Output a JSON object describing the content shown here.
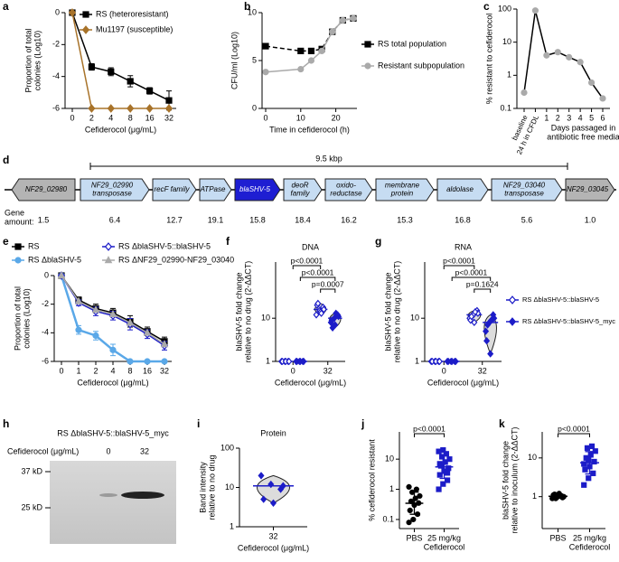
{
  "chart_data": [
    {
      "panel": "a",
      "type": "line",
      "categories": [
        "0",
        "2",
        "4",
        "8",
        "16",
        "32"
      ],
      "ylim": [
        -6,
        0
      ],
      "yticks": [
        -6,
        -4,
        -2,
        0
      ],
      "xlabel": "Cefiderocol (μg/mL)",
      "ylabel": [
        "Proportion of total",
        "colonies (Log10)"
      ],
      "legend": "upper right",
      "series": [
        {
          "name": "RS (heteroresistant)",
          "color": "#000000",
          "marker": "square",
          "values": [
            0,
            -3.4,
            -3.7,
            -4.3,
            -4.9,
            -5.5
          ],
          "errors": [
            0,
            0.2,
            0.25,
            0.35,
            0.2,
            0.6
          ]
        },
        {
          "name": "Mu1197 (susceptible)",
          "color": "#a8732a",
          "marker": "diamond",
          "values": [
            0,
            -6,
            -6,
            -6,
            -6,
            -6
          ]
        }
      ]
    },
    {
      "panel": "b",
      "type": "line",
      "x": [
        0,
        10,
        13,
        16,
        19,
        22,
        25
      ],
      "xlim": [
        0,
        25
      ],
      "xticks": [
        0,
        10,
        20
      ],
      "ylim": [
        0,
        10
      ],
      "yticks": [
        0,
        5,
        10
      ],
      "xlabel": "Time in cefiderocol (h)",
      "ylabel": [
        "CFU/ml (Log10)"
      ],
      "legend": "right",
      "series": [
        {
          "name": "RS total population",
          "color": "#000000",
          "marker": "square",
          "dash": true,
          "values": [
            6.5,
            6.0,
            6.0,
            6.2,
            8.0,
            9.2,
            9.4
          ]
        },
        {
          "name": "Resistant subpopulation",
          "color": "#aaaaaa",
          "marker": "circle",
          "values": [
            3.8,
            4.1,
            5.0,
            6.0,
            8.0,
            9.2,
            9.4
          ]
        }
      ]
    },
    {
      "panel": "c",
      "type": "line",
      "categories": [
        "baseline",
        "24 h in CFDL",
        "1",
        "2",
        "3",
        "4",
        "5",
        "6"
      ],
      "log_y": true,
      "ylim": [
        0.1,
        100
      ],
      "yticks": [
        0.1,
        1,
        10,
        100
      ],
      "xlabel": [
        "Days passaged in",
        "antibiotic free media"
      ],
      "ylabel": [
        "% resistant to cefiderocol"
      ],
      "series": [
        {
          "color": "#000000",
          "point_color": "#aaaaaa",
          "marker": "circle",
          "values": [
            0.3,
            90,
            4,
            5,
            3.5,
            2.5,
            0.6,
            0.2
          ]
        }
      ]
    },
    {
      "panel": "e",
      "type": "line",
      "categories": [
        "0",
        "1",
        "2",
        "4",
        "8",
        "16",
        "32"
      ],
      "ylim": [
        -6,
        0
      ],
      "yticks": [
        -6,
        -4,
        -2,
        0
      ],
      "xlabel": "Cefiderocol (μg/mL)",
      "ylabel": [
        "Proportion of total",
        "colonies (Log10)"
      ],
      "legend": "top",
      "series": [
        {
          "name": "RS",
          "color": "#000000",
          "marker": "square",
          "values": [
            0,
            -1.7,
            -2.3,
            -2.6,
            -3.2,
            -3.9,
            -4.6
          ],
          "errors": [
            0,
            0.2,
            0.3,
            0.3,
            0.4,
            0.3,
            0.3
          ]
        },
        {
          "name": "RS ΔblaSHV-5",
          "color": "#5aa8e8",
          "marker": "circle",
          "width": 2.5,
          "values": [
            0,
            -3.8,
            -4.2,
            -5.2,
            -6,
            -6,
            -6
          ],
          "errors": [
            0,
            0.3,
            0.3,
            0.4,
            0,
            0,
            0
          ]
        },
        {
          "name": "RS ΔblaSHV-5::blaSHV-5",
          "color": "#1c1cc8",
          "marker": "diamond",
          "open": true,
          "values": [
            0,
            -1.9,
            -2.5,
            -2.8,
            -3.4,
            -4.1,
            -4.9
          ],
          "errors": [
            0,
            0.2,
            0.3,
            0.3,
            0.4,
            0.3,
            0.3
          ]
        },
        {
          "name": "RS ΔNF29_02990-NF29_03040",
          "color": "#aaaaaa",
          "marker": "triangle",
          "values": [
            0,
            -1.8,
            -2.4,
            -2.7,
            -3.3,
            -4.0,
            -4.8
          ]
        }
      ]
    },
    {
      "panel": "f",
      "type": "strip",
      "title": "DNA",
      "categories": [
        "0",
        "32"
      ],
      "log_y": true,
      "violin": true,
      "ylim": [
        1,
        200
      ],
      "yticks": [
        1,
        10
      ],
      "xlabel": "Cefiderocol (μg/mL)",
      "ylabel": [
        "blaSHV-5 fold change",
        "relative to no drug (2-ΔΔCT)"
      ],
      "annotations": [
        "p<0.0001",
        "p<0.0001",
        "p=0.0007"
      ],
      "series": [
        {
          "color": "#1c1cc8",
          "marker": "diamond",
          "open": true,
          "points": [
            [
              1,
              1,
              1,
              1,
              1,
              1
            ],
            [
              12,
              15,
              18,
              20,
              14,
              16,
              22,
              13
            ]
          ]
        },
        {
          "color": "#1c1cc8",
          "marker": "diamond",
          "points": [
            [
              1,
              1,
              1,
              1,
              1,
              1
            ],
            [
              8,
              10,
              12,
              9,
              7,
              11,
              6,
              13
            ]
          ]
        }
      ]
    },
    {
      "panel": "g",
      "type": "strip",
      "title": "RNA",
      "categories": [
        "0",
        "32"
      ],
      "log_y": true,
      "violin": true,
      "ylim": [
        1,
        200
      ],
      "yticks": [
        1,
        10
      ],
      "xlabel": "Cefiderocol (μg/mL)",
      "ylabel": [
        "blaSHV-5 fold change",
        "relative to no drug (2-ΔΔCT)"
      ],
      "legend": "right",
      "annotations": [
        "p<0.0001",
        "p<0.0001",
        "p=0.1624"
      ],
      "series": [
        {
          "name": "RS ΔblaSHV-5::blaSHV-5",
          "color": "#1c1cc8",
          "marker": "diamond",
          "open": true,
          "points": [
            [
              1,
              1,
              1,
              1,
              1,
              1
            ],
            [
              10,
              12,
              15,
              9,
              8,
              13,
              11,
              14
            ]
          ]
        },
        {
          "name": "RS ΔblaSHV-5::blaSHV-5_myc",
          "color": "#1c1cc8",
          "marker": "diamond",
          "points": [
            [
              1,
              1,
              1,
              1,
              1,
              1
            ],
            [
              5,
              8,
              12,
              3,
              1.5,
              10,
              7,
              9
            ]
          ]
        }
      ]
    },
    {
      "panel": "i",
      "type": "strip",
      "title": "Protein",
      "categories": [
        "32"
      ],
      "log_y": true,
      "violin": true,
      "ylim": [
        1,
        100
      ],
      "yticks": [
        1,
        10,
        100
      ],
      "xlabel": "Cefiderocol (μg/mL)",
      "ylabel": [
        "Band intensity",
        "relative to no drug"
      ],
      "series": [
        {
          "color": "#1c1cc8",
          "marker": "diamond",
          "points": [
            [
              20,
              12,
              9,
              5,
              4,
              11
            ]
          ]
        }
      ]
    },
    {
      "panel": "j",
      "type": "strip",
      "categories": [
        "PBS",
        [
          "25 mg/kg",
          "Cefiderocol"
        ]
      ],
      "log_y": true,
      "mean_sd": true,
      "ylim": [
        0.05,
        80
      ],
      "yticks": [
        0.1,
        1,
        10
      ],
      "ylabel": [
        "% cefiderocol resistant"
      ],
      "annotations": [
        "p<0.0001"
      ],
      "series": [
        {
          "color": "#000000",
          "marker": "circle",
          "points": [
            [
              0.08,
              0.1,
              0.15,
              0.2,
              0.3,
              0.35,
              0.4,
              0.5,
              0.6,
              0.8,
              1.0,
              1.2
            ],
            []
          ]
        },
        {
          "color": "#1c1cc8",
          "marker": "square",
          "points": [
            [],
            [
              1,
              1.5,
              2,
              3,
              4,
              5,
              6,
              8,
              10,
              12,
              15,
              18,
              20,
              3.5,
              7
            ]
          ]
        }
      ]
    },
    {
      "panel": "k",
      "type": "strip",
      "categories": [
        "PBS",
        [
          "25 mg/kg",
          "Cefiderocol"
        ]
      ],
      "log_y": true,
      "mean_sd": true,
      "ylim": [
        0.15,
        47
      ],
      "yticks": [
        1,
        10
      ],
      "ylabel": [
        "blaSHV-5 fold change",
        "relative to inoculum (2-ΔΔCT)"
      ],
      "annotations": [
        "p<0.0001"
      ],
      "series": [
        {
          "color": "#000000",
          "marker": "circle",
          "points": [
            [
              0.9,
              1.0,
              1.05,
              1.1,
              1.0,
              0.95,
              1.15,
              1.2,
              1.0,
              0.9
            ],
            []
          ]
        },
        {
          "color": "#1c1cc8",
          "marker": "square",
          "points": [
            [],
            [
              2,
              3,
              4,
              5,
              6,
              8,
              10,
              12,
              15,
              18,
              20,
              7,
              9
            ]
          ]
        }
      ]
    }
  ],
  "gene_map": {
    "panel": "d",
    "span": "9.5 kbp",
    "amount_label": [
      "Gene",
      "amount:"
    ],
    "genes": [
      {
        "label": [
          "NF29_02980"
        ],
        "amount": "1.5",
        "direction": "left",
        "color": "#b4b4b4"
      },
      {
        "label": [
          "NF29_02990",
          "transposase"
        ],
        "amount": "6.4",
        "direction": "right",
        "color": "#c6dcf2"
      },
      {
        "label": [
          "recF family"
        ],
        "amount": "12.7",
        "direction": "right",
        "color": "#c6dcf2"
      },
      {
        "label": [
          "ATPase"
        ],
        "amount": "19.1",
        "direction": "right",
        "color": "#c6dcf2"
      },
      {
        "label": [
          "blaSHV-5"
        ],
        "amount": "15.8",
        "direction": "right",
        "color": "#1e1ed2"
      },
      {
        "label": [
          "deoR",
          "family"
        ],
        "amount": "18.4",
        "direction": "right",
        "color": "#c6dcf2"
      },
      {
        "label": [
          "oxido-",
          "reductase"
        ],
        "amount": "16.2",
        "direction": "right",
        "color": "#c6dcf2"
      },
      {
        "label": [
          "membrane",
          "protein"
        ],
        "amount": "15.3",
        "direction": "right",
        "color": "#c6dcf2"
      },
      {
        "label": [
          "aldolase"
        ],
        "amount": "16.8",
        "direction": "right",
        "color": "#c6dcf2"
      },
      {
        "label": [
          "NF29_03040",
          "transposase"
        ],
        "amount": "5.6",
        "direction": "right",
        "color": "#c6dcf2"
      },
      {
        "label": [
          "NF29_03045"
        ],
        "amount": "1.0",
        "direction": "right",
        "color": "#b4b4b4"
      }
    ]
  },
  "blot": {
    "panel": "h",
    "strain": "RS ΔblaSHV-5::blaSHV-5_myc",
    "treatment": "Cefiderocol (μg/mL)",
    "lanes": [
      "0",
      "32"
    ],
    "markers": [
      "37 kD",
      "25 kD"
    ]
  }
}
